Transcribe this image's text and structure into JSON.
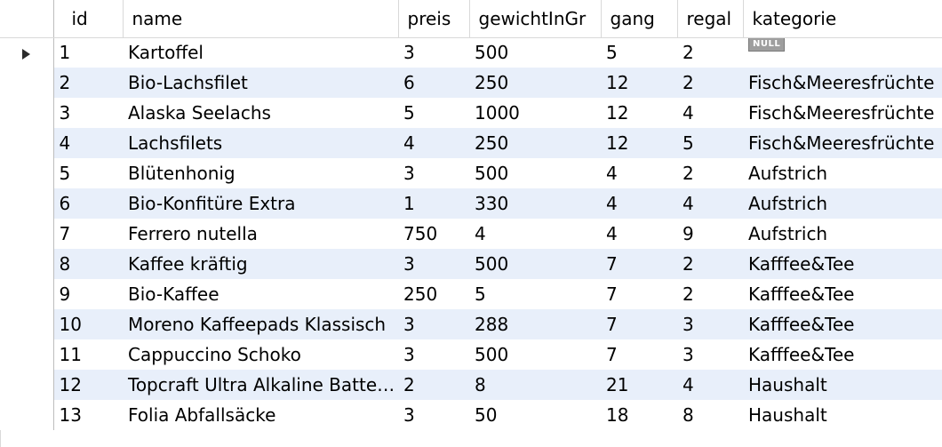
{
  "grid": {
    "columns": [
      "id",
      "name",
      "preis",
      "gewichtInGr",
      "gang",
      "regal",
      "kategorie"
    ],
    "current_row_marker": "row-pointer-icon",
    "null_label": "NULL",
    "rows": [
      {
        "id": "1",
        "name": "Kartoffel",
        "preis": "3",
        "gewichtInGr": "500",
        "gang": "5",
        "regal": "2",
        "kategorie": null
      },
      {
        "id": "2",
        "name": "Bio-Lachsfilet",
        "preis": "6",
        "gewichtInGr": "250",
        "gang": "12",
        "regal": "2",
        "kategorie": "Fisch&Meeresfrüchte"
      },
      {
        "id": "3",
        "name": "Alaska Seelachs",
        "preis": "5",
        "gewichtInGr": "1000",
        "gang": "12",
        "regal": "4",
        "kategorie": "Fisch&Meeresfrüchte"
      },
      {
        "id": "4",
        "name": "Lachsfilets",
        "preis": "4",
        "gewichtInGr": "250",
        "gang": "12",
        "regal": "5",
        "kategorie": "Fisch&Meeresfrüchte"
      },
      {
        "id": "5",
        "name": "Blütenhonig",
        "preis": "3",
        "gewichtInGr": "500",
        "gang": "4",
        "regal": "2",
        "kategorie": "Aufstrich"
      },
      {
        "id": "6",
        "name": "Bio-Konfitüre Extra",
        "preis": "1",
        "gewichtInGr": "330",
        "gang": "4",
        "regal": "4",
        "kategorie": "Aufstrich"
      },
      {
        "id": "7",
        "name": "Ferrero nutella",
        "preis": "750",
        "gewichtInGr": "4",
        "gang": "4",
        "regal": "9",
        "kategorie": "Aufstrich"
      },
      {
        "id": "8",
        "name": "Kaffee kräftig",
        "preis": "3",
        "gewichtInGr": "500",
        "gang": "7",
        "regal": "2",
        "kategorie": "Kafffee&Tee"
      },
      {
        "id": "9",
        "name": "Bio-Kaffee",
        "preis": "250",
        "gewichtInGr": "5",
        "gang": "7",
        "regal": "2",
        "kategorie": "Kafffee&Tee"
      },
      {
        "id": "10",
        "name": "Moreno Kaffeepads Klassisch",
        "preis": "3",
        "gewichtInGr": "288",
        "gang": "7",
        "regal": "3",
        "kategorie": "Kafffee&Tee"
      },
      {
        "id": "11",
        "name": "Cappuccino Schoko",
        "preis": "3",
        "gewichtInGr": "500",
        "gang": "7",
        "regal": "3",
        "kategorie": "Kafffee&Tee"
      },
      {
        "id": "12",
        "name": "Topcraft Ultra Alkaline Batte…",
        "preis": "2",
        "gewichtInGr": "8",
        "gang": "21",
        "regal": "4",
        "kategorie": "Haushalt"
      },
      {
        "id": "13",
        "name": "Folia Abfallsäcke",
        "preis": "3",
        "gewichtInGr": "50",
        "gang": "18",
        "regal": "8",
        "kategorie": "Haushalt"
      }
    ]
  }
}
